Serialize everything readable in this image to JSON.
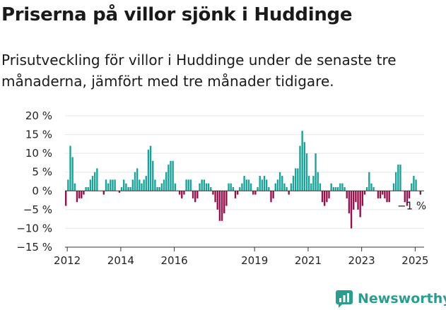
{
  "title": "Priserna på villor sjönk i Huddinge",
  "subtitle": "Prisutveckling för villor i Huddinge under de senaste tre månaderna, jämfört med tre månader tidigare.",
  "brand": {
    "name": "Newsworthy",
    "icon": "newsworthy-logo-icon"
  },
  "colors": {
    "positive": "#17a399",
    "negative": "#9b0d4a",
    "axis": "#333333",
    "grid": "#e6e6e6"
  },
  "chart_data": {
    "type": "bar",
    "x_start": "2011-12",
    "x_end": "2025-04",
    "ylim": [
      -15,
      20
    ],
    "yticks": [
      20,
      15,
      10,
      5,
      0,
      -5,
      -10,
      -15
    ],
    "ytick_labels": [
      "20 %",
      "15 %",
      "10 %",
      "5 %",
      "0 %",
      "−5 %",
      "−10 %",
      "−15 %"
    ],
    "xtick_labels": [
      "2012",
      "2014",
      "2016",
      "2019",
      "2021",
      "2023",
      "2025"
    ],
    "grid": true,
    "annotation": "−1 %",
    "values": [
      -4,
      3,
      12,
      9,
      2,
      -3,
      -2,
      -2,
      -1,
      1,
      1,
      3,
      4,
      5,
      6,
      0,
      0,
      -1,
      3,
      2,
      3,
      3,
      3,
      0,
      -0.5,
      1,
      3,
      2,
      1,
      1,
      3,
      5,
      6,
      3,
      2,
      3,
      4,
      11,
      12,
      8,
      3,
      1,
      1,
      2,
      3,
      5,
      7,
      8,
      8,
      2,
      0,
      -1,
      -2,
      -1,
      3,
      3,
      3,
      -2,
      -3,
      -2,
      2,
      3,
      3,
      2,
      2,
      1,
      -1,
      -3,
      -5,
      -8,
      -8,
      -6,
      -4,
      2,
      2,
      1,
      -2,
      -1,
      1,
      2,
      4,
      3,
      3,
      2,
      -1,
      -1,
      1,
      4,
      3,
      4,
      3,
      1,
      -3,
      -2,
      2,
      3,
      5,
      4,
      2,
      1,
      -1,
      2,
      4,
      6,
      6,
      12,
      16,
      13,
      10,
      4,
      2,
      4,
      10,
      5,
      2,
      -3,
      -4,
      -3,
      -2,
      2,
      1,
      1,
      1,
      2,
      2,
      1,
      -2,
      -6,
      -10,
      -5,
      -3,
      -5,
      -7,
      -4,
      -1,
      1,
      5,
      2,
      1,
      0,
      -2,
      -2,
      -1,
      -2,
      -3,
      -3,
      0,
      2,
      5,
      7,
      7,
      0,
      -3,
      -4,
      -2,
      2,
      4,
      3,
      0,
      -1
    ]
  }
}
